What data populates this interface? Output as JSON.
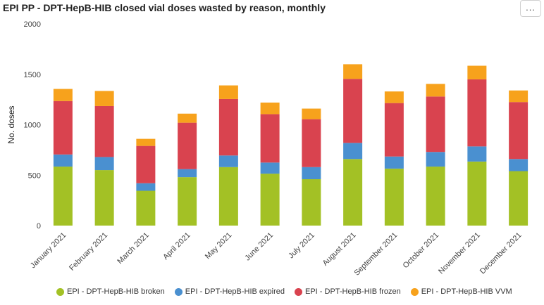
{
  "header": {
    "title": "EPI PP - DPT-HepB-HIB closed vial doses wasted by reason, monthly",
    "menu_icon": "more-horizontal-icon",
    "menu_label": "..."
  },
  "chart_data": {
    "type": "bar",
    "stacked": true,
    "title": "EPI PP - DPT-HepB-HIB closed vial doses wasted by reason, monthly",
    "xlabel": "",
    "ylabel": "No. doses",
    "ylim": [
      0,
      2000
    ],
    "yticks": [
      0,
      500,
      1000,
      1500,
      2000
    ],
    "grid": false,
    "legend_position": "bottom",
    "categories": [
      "January 2021",
      "February 2021",
      "March 2021",
      "April 2021",
      "May 2021",
      "June 2021",
      "July 2021",
      "August 2021",
      "September 2021",
      "October 2021",
      "November 2021",
      "December 2021"
    ],
    "series": [
      {
        "name": "EPI - DPT-HepB-HIB broken",
        "color": "#a3c125",
        "values": [
          585,
          550,
          345,
          480,
          580,
          515,
          460,
          660,
          565,
          585,
          635,
          540
        ]
      },
      {
        "name": "EPI - DPT-HepB-HIB expired",
        "color": "#4a90d0",
        "values": [
          120,
          130,
          75,
          80,
          115,
          110,
          120,
          160,
          120,
          145,
          150,
          120
        ]
      },
      {
        "name": "EPI - DPT-HepB-HIB frozen",
        "color": "#d9434f",
        "values": [
          530,
          505,
          370,
          460,
          560,
          480,
          475,
          635,
          530,
          550,
          665,
          565
        ]
      },
      {
        "name": "EPI - DPT-HepB-HIB VVM",
        "color": "#f7a21c",
        "values": [
          120,
          150,
          70,
          90,
          135,
          115,
          105,
          145,
          115,
          125,
          135,
          115
        ]
      }
    ]
  }
}
